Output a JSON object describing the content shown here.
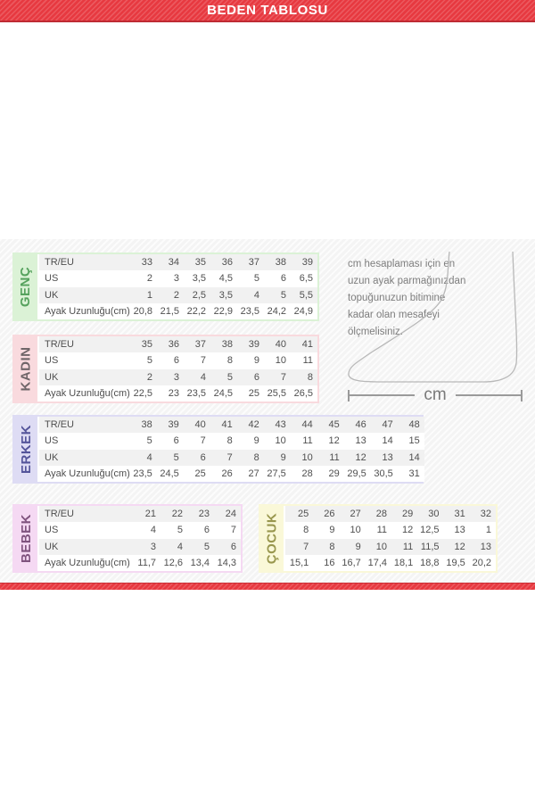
{
  "title": "BEDEN TABLOSU",
  "note_lines": [
    "cm hesaplaması için en",
    "uzun ayak parmağınızdan",
    "topuğunuzun bitimine",
    "kadar olan mesafeyi",
    "ölçmelisiniz."
  ],
  "measure_label": "cm",
  "colors": {
    "band_red": "#e73940",
    "band_red_dark": "#bf2b33",
    "row_alt": "#f1f1f1",
    "table_text": "#4f4f4f",
    "genc_bg": "#dbf2d6",
    "genc_fg": "#56a25e",
    "kadin_bg": "#f9dade",
    "kadin_fg": "#6f6568",
    "erkek_bg": "#dedcf4",
    "erkek_fg": "#54549a",
    "bebek_bg": "#f5d9f3",
    "bebek_fg": "#7f537e",
    "cocuk_bg": "#faf8d8",
    "cocuk_fg": "#99974e"
  },
  "chart_data": [
    {
      "type": "table",
      "label": "GENÇ",
      "row_headers": [
        "TR/EU",
        "US",
        "UK",
        "Ayak Uzunluğu(cm)"
      ],
      "rows": [
        [
          "33",
          "34",
          "35",
          "36",
          "37",
          "38",
          "39"
        ],
        [
          "2",
          "3",
          "3,5",
          "4,5",
          "5",
          "6",
          "6,5"
        ],
        [
          "1",
          "2",
          "2,5",
          "3,5",
          "4",
          "5",
          "5,5"
        ],
        [
          "20,8",
          "21,5",
          "22,2",
          "22,9",
          "23,5",
          "24,2",
          "24,9"
        ]
      ]
    },
    {
      "type": "table",
      "label": "KADIN",
      "row_headers": [
        "TR/EU",
        "US",
        "UK",
        "Ayak Uzunluğu(cm)"
      ],
      "rows": [
        [
          "35",
          "36",
          "37",
          "38",
          "39",
          "40",
          "41"
        ],
        [
          "5",
          "6",
          "7",
          "8",
          "9",
          "10",
          "11"
        ],
        [
          "2",
          "3",
          "4",
          "5",
          "6",
          "7",
          "8"
        ],
        [
          "22,5",
          "23",
          "23,5",
          "24,5",
          "25",
          "25,5",
          "26,5"
        ]
      ]
    },
    {
      "type": "table",
      "label": "ERKEK",
      "row_headers": [
        "TR/EU",
        "US",
        "UK",
        "Ayak Uzunluğu(cm)"
      ],
      "rows": [
        [
          "38",
          "39",
          "40",
          "41",
          "42",
          "43",
          "44",
          "45",
          "46",
          "47",
          "48"
        ],
        [
          "5",
          "6",
          "7",
          "8",
          "9",
          "10",
          "11",
          "12",
          "13",
          "14",
          "15"
        ],
        [
          "4",
          "5",
          "6",
          "7",
          "8",
          "9",
          "10",
          "11",
          "12",
          "13",
          "14"
        ],
        [
          "23,5",
          "24,5",
          "25",
          "26",
          "27",
          "27,5",
          "28",
          "29",
          "29,5",
          "30,5",
          "31"
        ]
      ]
    },
    {
      "type": "table",
      "label": "BEBEK",
      "row_headers": [
        "TR/EU",
        "US",
        "UK",
        "Ayak Uzunluğu(cm)"
      ],
      "rows": [
        [
          "21",
          "22",
          "23",
          "24"
        ],
        [
          "4",
          "5",
          "6",
          "7"
        ],
        [
          "3",
          "4",
          "5",
          "6"
        ],
        [
          "11,7",
          "12,6",
          "13,4",
          "14,3"
        ]
      ]
    },
    {
      "type": "table",
      "label": "ÇOCUK",
      "row_headers": [],
      "rows": [
        [
          "25",
          "26",
          "27",
          "28",
          "29",
          "30",
          "31",
          "32"
        ],
        [
          "8",
          "9",
          "10",
          "11",
          "12",
          "12,5",
          "13",
          "1"
        ],
        [
          "7",
          "8",
          "9",
          "10",
          "11",
          "11,5",
          "12",
          "13"
        ],
        [
          "15,1",
          "16",
          "16,7",
          "17,4",
          "18,1",
          "18,8",
          "19,5",
          "20,2"
        ]
      ]
    }
  ]
}
